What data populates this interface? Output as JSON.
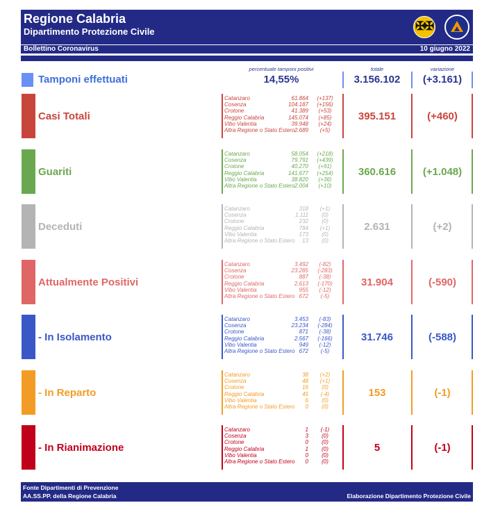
{
  "header": {
    "title": "Regione Calabria",
    "subtitle": "Dipartimento Protezione Civile",
    "bulletin": "Bollettino Coronavirus",
    "date": "10 giugno 2022"
  },
  "columns": {
    "perc_header": "percentuale tamponi positivi",
    "total_header": "totale",
    "var_header": "variazione"
  },
  "tamponi": {
    "label": "Tamponi effettuati",
    "perc": "14,55%",
    "total": "3.156.102",
    "variation": "(+3.161)",
    "color": "#6a8ff5"
  },
  "rows": [
    {
      "label": "Casi Totali",
      "color": "#c8453c",
      "total": "395.151",
      "variation": "(+460)",
      "provinces": [
        {
          "name": "Catanzaro",
          "value": "61.864",
          "delta": "(+137)"
        },
        {
          "name": "Cosenza",
          "value": "104.187",
          "delta": "(+156)"
        },
        {
          "name": "Crotone",
          "value": "41.389",
          "delta": "(+53)"
        },
        {
          "name": "Reggio Calabria",
          "value": "145.074",
          "delta": "(+85)"
        },
        {
          "name": "Vibo Valentia",
          "value": "39.948",
          "delta": "(+24)"
        },
        {
          "name": "Altra Regione o Stato Estero",
          "value": "2.689",
          "delta": "(+5)"
        }
      ]
    },
    {
      "label": "Guariti",
      "color": "#6aa84f",
      "total": "360.616",
      "variation": "(+1.048)",
      "provinces": [
        {
          "name": "Catanzaro",
          "value": "58.054",
          "delta": "(+218)"
        },
        {
          "name": "Cosenza",
          "value": "79.791",
          "delta": "(+439)"
        },
        {
          "name": "Crotone",
          "value": "40.270",
          "delta": "(+91)"
        },
        {
          "name": "Reggio Calabria",
          "value": "141.677",
          "delta": "(+254)"
        },
        {
          "name": "Vibo Valentia",
          "value": "38.820",
          "delta": "(+36)"
        },
        {
          "name": "Altra Regione o Stato Estero",
          "value": "2.004",
          "delta": "(+10)"
        }
      ]
    },
    {
      "label": "Deceduti",
      "color": "#b4b4b4",
      "total": "2.631",
      "variation": "(+2)",
      "provinces": [
        {
          "name": "Catanzaro",
          "value": "318",
          "delta": "(+1)"
        },
        {
          "name": "Cosenza",
          "value": "1.111",
          "delta": "(0)"
        },
        {
          "name": "Crotone",
          "value": "232",
          "delta": "(0)"
        },
        {
          "name": "Reggio Calabria",
          "value": "784",
          "delta": "(+1)"
        },
        {
          "name": "Vibo Valentia",
          "value": "173",
          "delta": "(0)"
        },
        {
          "name": "Altra Regione o Stato Estero",
          "value": "13",
          "delta": "(0)"
        }
      ]
    },
    {
      "label": "Attualmente Positivi",
      "color": "#e06666",
      "total": "31.904",
      "variation": "(-590)",
      "provinces": [
        {
          "name": "Catanzaro",
          "value": "3.492",
          "delta": "(-82)"
        },
        {
          "name": "Cosenza",
          "value": "23.285",
          "delta": "(-283)"
        },
        {
          "name": "Crotone",
          "value": "887",
          "delta": "(-38)"
        },
        {
          "name": "Reggio Calabria",
          "value": "2.613",
          "delta": "(-170)"
        },
        {
          "name": "Vibo Valentia",
          "value": "955",
          "delta": "(-12)"
        },
        {
          "name": "Altra Regione o Stato Estero",
          "value": "672",
          "delta": "(-5)"
        }
      ]
    },
    {
      "label": " - In Isolamento",
      "color": "#3a57c8",
      "total": "31.746",
      "variation": "(-588)",
      "provinces": [
        {
          "name": "Catanzaro",
          "value": "3.453",
          "delta": "(-83)"
        },
        {
          "name": "Cosenza",
          "value": "23.234",
          "delta": "(-284)"
        },
        {
          "name": "Crotone",
          "value": "871",
          "delta": "(-38)"
        },
        {
          "name": "Reggio Calabria",
          "value": "2.567",
          "delta": "(-166)"
        },
        {
          "name": "Vibo Valentia",
          "value": "949",
          "delta": "(-12)"
        },
        {
          "name": "Altra Regione o Stato Estero",
          "value": "672",
          "delta": "(-5)"
        }
      ]
    },
    {
      "label": " - In Reparto",
      "color": "#f39c25",
      "total": "153",
      "variation": "(-1)",
      "provinces": [
        {
          "name": "Catanzaro",
          "value": "38",
          "delta": "(+2)"
        },
        {
          "name": "Cosenza",
          "value": "48",
          "delta": "(+1)"
        },
        {
          "name": "Crotone",
          "value": "16",
          "delta": "(0)"
        },
        {
          "name": "Reggio Calabria",
          "value": "45",
          "delta": "(-4)"
        },
        {
          "name": "Vibo Valentia",
          "value": "6",
          "delta": "(0)"
        },
        {
          "name": "Altra Regione o Stato Estero",
          "value": "0",
          "delta": "(0)"
        }
      ]
    },
    {
      "label": " - In Rianimazione",
      "color": "#c0001b",
      "total": "5",
      "variation": "(-1)",
      "provinces": [
        {
          "name": "Catanzaro",
          "value": "1",
          "delta": "(-1)"
        },
        {
          "name": "Cosenza",
          "value": "3",
          "delta": "(0)"
        },
        {
          "name": "Crotone",
          "value": "0",
          "delta": "(0)"
        },
        {
          "name": "Reggio Calabria",
          "value": "1",
          "delta": "(0)"
        },
        {
          "name": "Vibo Valentia",
          "value": "0",
          "delta": "(0)"
        },
        {
          "name": "Altra Regione o Stato Estero",
          "value": "0",
          "delta": "(0)"
        }
      ]
    }
  ],
  "footer": {
    "line1": "Fonte Dipartimenti di Prevenzione",
    "line2": "AA.SS.PP.  della Regione Calabria",
    "right": "Elaborazione Dipartimento Protezione Civile"
  }
}
